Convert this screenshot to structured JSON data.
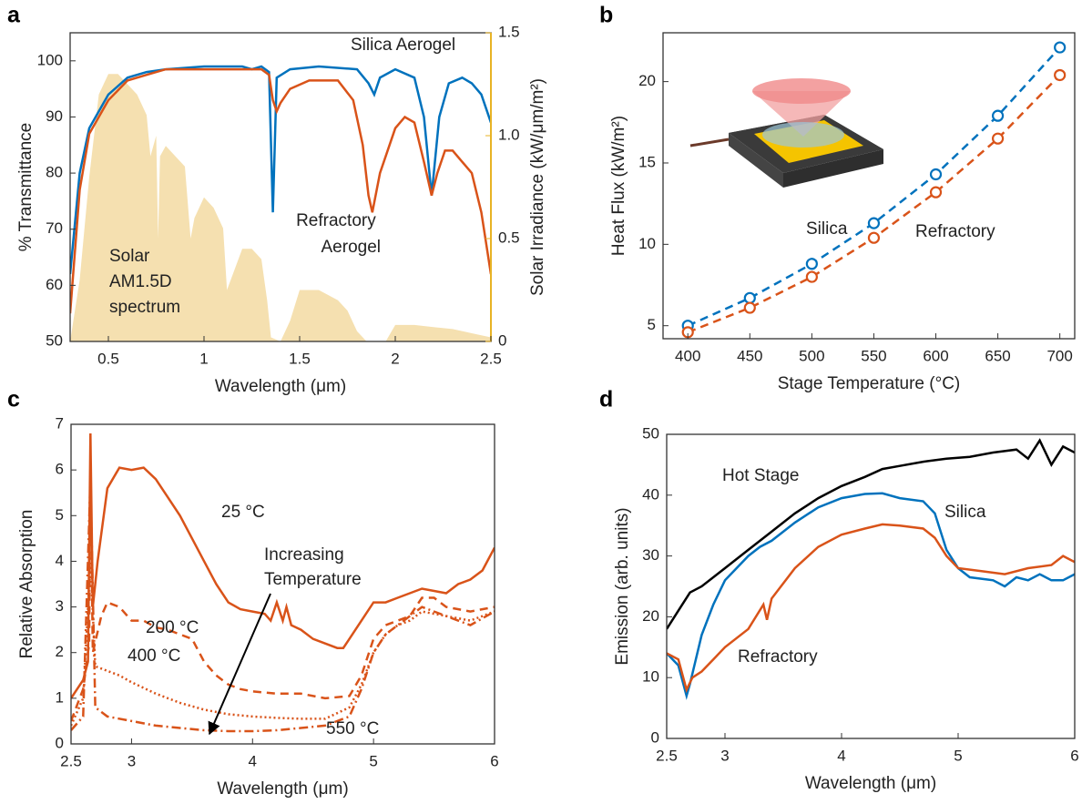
{
  "chart_data": [
    {
      "type": "line",
      "panel": "a",
      "xlabel": "Wavelength (μm)",
      "ylabel": "% Transmittance",
      "y2label": "Solar Irradiance (kW/μm/m²)",
      "xlim": [
        0.3,
        2.5
      ],
      "xticks": [
        0.5,
        1,
        1.5,
        2,
        2.5
      ],
      "ylim": [
        50,
        105
      ],
      "yticks": [
        50,
        60,
        70,
        80,
        90,
        100
      ],
      "y2lim": [
        0,
        1.5
      ],
      "y2ticks": [
        0,
        0.5,
        {
          "value": 1,
          "label": "1.0"
        },
        1.5
      ],
      "y2color": "#e8b325",
      "series": [
        {
          "name": "Solar AM1.5D spectrum",
          "color": "#f5e0b0",
          "style": "area",
          "axis": "y2",
          "x": [
            0.3,
            0.35,
            0.4,
            0.45,
            0.5,
            0.55,
            0.6,
            0.65,
            0.7,
            0.72,
            0.75,
            0.76,
            0.77,
            0.8,
            0.9,
            0.93,
            0.95,
            1.0,
            1.05,
            1.1,
            1.12,
            1.14,
            1.2,
            1.25,
            1.3,
            1.33,
            1.35,
            1.4,
            1.45,
            1.5,
            1.6,
            1.7,
            1.75,
            1.8,
            1.85,
            1.95,
            2.0,
            2.1,
            2.2,
            2.3,
            2.4,
            2.5
          ],
          "values": [
            0,
            0.3,
            0.8,
            1.2,
            1.3,
            1.3,
            1.25,
            1.2,
            1.1,
            0.9,
            1.0,
            0.5,
            0.9,
            0.95,
            0.85,
            0.5,
            0.6,
            0.7,
            0.65,
            0.55,
            0.25,
            0.3,
            0.45,
            0.45,
            0.4,
            0.2,
            0.02,
            0,
            0.1,
            0.25,
            0.25,
            0.2,
            0.15,
            0.05,
            0,
            0,
            0.08,
            0.08,
            0.07,
            0.06,
            0.04,
            0.02
          ]
        },
        {
          "name": "Silica Aerogel",
          "color": "#0072bd",
          "x": [
            0.3,
            0.35,
            0.4,
            0.5,
            0.6,
            0.7,
            0.8,
            1.0,
            1.2,
            1.25,
            1.3,
            1.34,
            1.36,
            1.38,
            1.45,
            1.6,
            1.8,
            1.86,
            1.89,
            1.92,
            2.0,
            2.1,
            2.15,
            2.19,
            2.23,
            2.28,
            2.35,
            2.4,
            2.45,
            2.5
          ],
          "values": [
            62,
            80,
            88,
            94,
            97,
            98,
            98.5,
            99,
            99,
            98.5,
            99,
            98,
            73,
            97,
            98.5,
            99,
            98.5,
            96,
            94,
            97,
            98.5,
            97,
            90,
            76,
            90,
            96,
            97,
            96,
            94,
            89
          ]
        },
        {
          "name": "Refractory Aerogel",
          "color": "#d95319",
          "x": [
            0.3,
            0.35,
            0.4,
            0.5,
            0.6,
            0.7,
            0.8,
            1.0,
            1.2,
            1.3,
            1.34,
            1.36,
            1.38,
            1.4,
            1.45,
            1.55,
            1.7,
            1.78,
            1.83,
            1.86,
            1.88,
            1.92,
            2.0,
            2.05,
            2.1,
            2.15,
            2.19,
            2.22,
            2.26,
            2.3,
            2.4,
            2.45,
            2.5
          ],
          "values": [
            55,
            77,
            87,
            93,
            96.5,
            97.5,
            98.5,
            98.5,
            98.5,
            98.5,
            97.5,
            93,
            91,
            92.5,
            95,
            96.5,
            96.5,
            93,
            85,
            76,
            73,
            80,
            88,
            90,
            89,
            82,
            76,
            80,
            84,
            84,
            80,
            73,
            62
          ]
        }
      ]
    },
    {
      "type": "line",
      "panel": "b",
      "xlabel": "Stage Temperature (°C)",
      "ylabel": "Heat Flux (kW/m²)",
      "xlim": [
        380,
        712
      ],
      "xticks": [
        400,
        450,
        500,
        550,
        600,
        650,
        700
      ],
      "ylim": [
        4.2,
        23
      ],
      "yticks": [
        5,
        10,
        15,
        20
      ],
      "marker": "circle",
      "dash": "dashed",
      "series": [
        {
          "name": "Silica",
          "color": "#0072bd",
          "x": [
            400,
            450,
            500,
            550,
            600,
            650,
            700
          ],
          "values": [
            5.0,
            6.7,
            8.8,
            11.3,
            14.3,
            17.9,
            22.1
          ]
        },
        {
          "name": "Refractory",
          "color": "#d95319",
          "x": [
            400,
            450,
            500,
            550,
            600,
            650,
            700
          ],
          "values": [
            4.6,
            6.1,
            8.0,
            10.4,
            13.2,
            16.5,
            20.4
          ]
        }
      ]
    },
    {
      "type": "line",
      "panel": "c",
      "xlabel": "Wavelength (μm)",
      "ylabel": "Relative Absorption",
      "xlim": [
        2.5,
        6
      ],
      "xticks": [
        2.5,
        3,
        4,
        5,
        6
      ],
      "ylim": [
        0,
        7
      ],
      "yticks": [
        0,
        1,
        2,
        3,
        4,
        5,
        6,
        7
      ],
      "annotation": "Increasing Temperature",
      "series": [
        {
          "name": "25 °C",
          "color": "#d95319",
          "dash": "solid",
          "x": [
            2.5,
            2.6,
            2.64,
            2.66,
            2.68,
            2.72,
            2.8,
            2.9,
            3.0,
            3.1,
            3.2,
            3.3,
            3.4,
            3.5,
            3.6,
            3.7,
            3.8,
            3.9,
            4.0,
            4.1,
            4.15,
            4.2,
            4.25,
            4.28,
            4.32,
            4.4,
            4.5,
            4.6,
            4.7,
            4.75,
            4.8,
            4.9,
            5.0,
            5.1,
            5.2,
            5.3,
            5.4,
            5.5,
            5.6,
            5.7,
            5.8,
            5.9,
            6.0
          ],
          "values": [
            1.0,
            1.4,
            1.8,
            6.8,
            3.0,
            4.0,
            5.6,
            6.05,
            6.0,
            6.05,
            5.8,
            5.4,
            5.0,
            4.5,
            4.0,
            3.5,
            3.1,
            2.95,
            2.9,
            2.85,
            2.7,
            3.1,
            2.7,
            3.0,
            2.6,
            2.5,
            2.3,
            2.2,
            2.1,
            2.1,
            2.3,
            2.7,
            3.1,
            3.1,
            3.2,
            3.3,
            3.4,
            3.35,
            3.3,
            3.5,
            3.6,
            3.8,
            4.3
          ]
        },
        {
          "name": "200 °C",
          "color": "#d95319",
          "dash": "dashed",
          "x": [
            2.5,
            2.6,
            2.65,
            2.66,
            2.68,
            2.75,
            2.8,
            2.9,
            3.0,
            3.1,
            3.2,
            3.3,
            3.4,
            3.5,
            3.6,
            3.7,
            3.8,
            3.9,
            4.0,
            4.2,
            4.4,
            4.6,
            4.8,
            4.9,
            5.0,
            5.1,
            5.2,
            5.3,
            5.4,
            5.5,
            5.6,
            5.8,
            6.0
          ],
          "values": [
            0.5,
            1.2,
            2.2,
            6.0,
            2.0,
            2.8,
            3.1,
            3.0,
            2.7,
            2.7,
            2.55,
            2.5,
            2.4,
            2.3,
            1.8,
            1.5,
            1.3,
            1.2,
            1.15,
            1.1,
            1.1,
            1.0,
            1.05,
            1.5,
            2.3,
            2.6,
            2.7,
            2.8,
            3.2,
            3.2,
            3.0,
            2.9,
            3.0
          ]
        },
        {
          "name": "400 °C",
          "color": "#d95319",
          "dash": "dotted",
          "x": [
            2.5,
            2.6,
            2.66,
            2.7,
            2.8,
            2.9,
            3.0,
            3.2,
            3.4,
            3.6,
            3.8,
            4.0,
            4.2,
            4.4,
            4.6,
            4.8,
            4.9,
            5.0,
            5.1,
            5.2,
            5.3,
            5.4,
            5.6,
            5.8,
            6.0
          ],
          "values": [
            0.4,
            1.0,
            4.0,
            1.7,
            1.6,
            1.5,
            1.35,
            1.1,
            0.9,
            0.75,
            0.65,
            0.6,
            0.57,
            0.55,
            0.55,
            0.8,
            1.3,
            2.0,
            2.4,
            2.6,
            2.7,
            2.9,
            2.8,
            2.7,
            2.9
          ]
        },
        {
          "name": "550 °C",
          "color": "#d95319",
          "dash": "dashdot",
          "x": [
            2.5,
            2.6,
            2.66,
            2.7,
            2.8,
            3.0,
            3.2,
            3.4,
            3.6,
            3.8,
            4.0,
            4.2,
            4.4,
            4.6,
            4.8,
            4.9,
            5.0,
            5.1,
            5.2,
            5.4,
            5.6,
            5.8,
            6.0
          ],
          "values": [
            0.3,
            0.6,
            5.8,
            0.8,
            0.6,
            0.5,
            0.4,
            0.35,
            0.3,
            0.28,
            0.28,
            0.3,
            0.35,
            0.4,
            0.6,
            1.2,
            2.0,
            2.4,
            2.6,
            3.0,
            2.8,
            2.6,
            2.9
          ]
        }
      ]
    },
    {
      "type": "line",
      "panel": "d",
      "xlabel": "Wavelength (μm)",
      "ylabel": "Emission (arb. units)",
      "xlim": [
        2.5,
        6
      ],
      "xticks": [
        2.5,
        3,
        4,
        5,
        6
      ],
      "ylim": [
        0,
        50
      ],
      "yticks": [
        0,
        10,
        20,
        30,
        40,
        50
      ],
      "series": [
        {
          "name": "Hot Stage",
          "color": "#000000",
          "x": [
            2.5,
            2.6,
            2.7,
            2.8,
            3.0,
            3.2,
            3.4,
            3.6,
            3.8,
            4.0,
            4.2,
            4.35,
            4.5,
            4.7,
            4.9,
            5.1,
            5.3,
            5.5,
            5.6,
            5.7,
            5.8,
            5.9,
            6.0
          ],
          "values": [
            18,
            21,
            24,
            25,
            28,
            31,
            34,
            37,
            39.5,
            41.5,
            43,
            44.3,
            44.8,
            45.5,
            46,
            46.3,
            47,
            47.5,
            46,
            49,
            45,
            48,
            47
          ]
        },
        {
          "name": "Silica",
          "color": "#0072bd",
          "x": [
            2.5,
            2.6,
            2.67,
            2.7,
            2.8,
            2.9,
            3.0,
            3.2,
            3.3,
            3.4,
            3.6,
            3.8,
            4.0,
            4.2,
            4.35,
            4.5,
            4.7,
            4.8,
            4.9,
            5.0,
            5.1,
            5.3,
            5.4,
            5.5,
            5.6,
            5.7,
            5.8,
            5.9,
            6.0
          ],
          "values": [
            14,
            12,
            7,
            9,
            17,
            22,
            26,
            30,
            31.5,
            32.5,
            35.5,
            38,
            39.5,
            40.2,
            40.3,
            39.5,
            39,
            37,
            31,
            28,
            26.5,
            26,
            25,
            26.5,
            26,
            27,
            26,
            26,
            27
          ]
        },
        {
          "name": "Refractory",
          "color": "#d95319",
          "x": [
            2.5,
            2.6,
            2.67,
            2.72,
            2.8,
            2.9,
            3.0,
            3.2,
            3.33,
            3.36,
            3.4,
            3.6,
            3.8,
            4.0,
            4.2,
            4.35,
            4.5,
            4.7,
            4.8,
            4.9,
            5.0,
            5.2,
            5.4,
            5.6,
            5.8,
            5.9,
            6.0
          ],
          "values": [
            14,
            13,
            8,
            10,
            11,
            13,
            15,
            18,
            22,
            19.5,
            23,
            28,
            31.5,
            33.5,
            34.5,
            35.2,
            35,
            34.5,
            33,
            30,
            28,
            27.5,
            27,
            28,
            28.5,
            30,
            29
          ]
        }
      ]
    }
  ]
}
